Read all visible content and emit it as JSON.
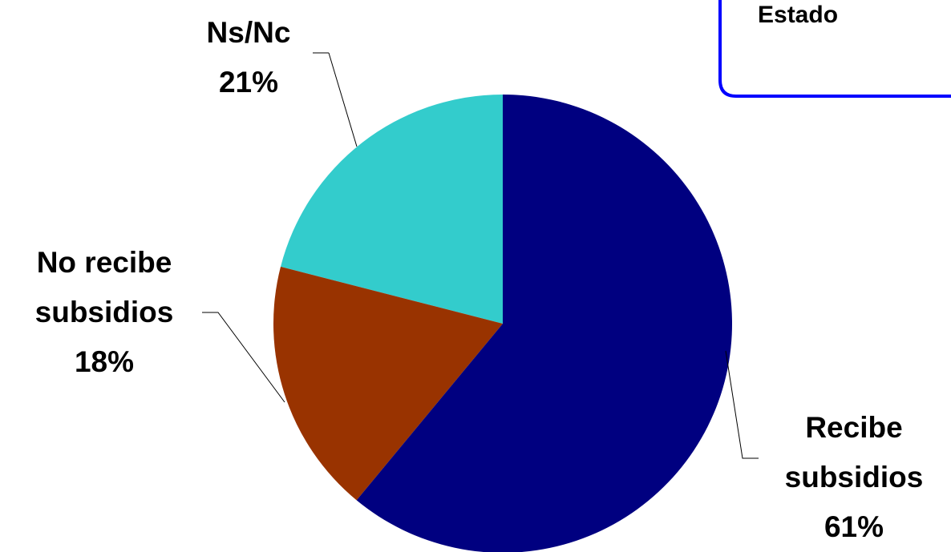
{
  "chart_data": {
    "type": "pie",
    "annotation": "Estado",
    "categories": [
      "Recibe subsidios",
      "No recibe subsidios",
      "Ns/Nc"
    ],
    "values": [
      61,
      18,
      21
    ],
    "value_labels": [
      "61%",
      "18%",
      "21%"
    ],
    "colors": [
      "#000080",
      "#993300",
      "#33cccc"
    ]
  }
}
